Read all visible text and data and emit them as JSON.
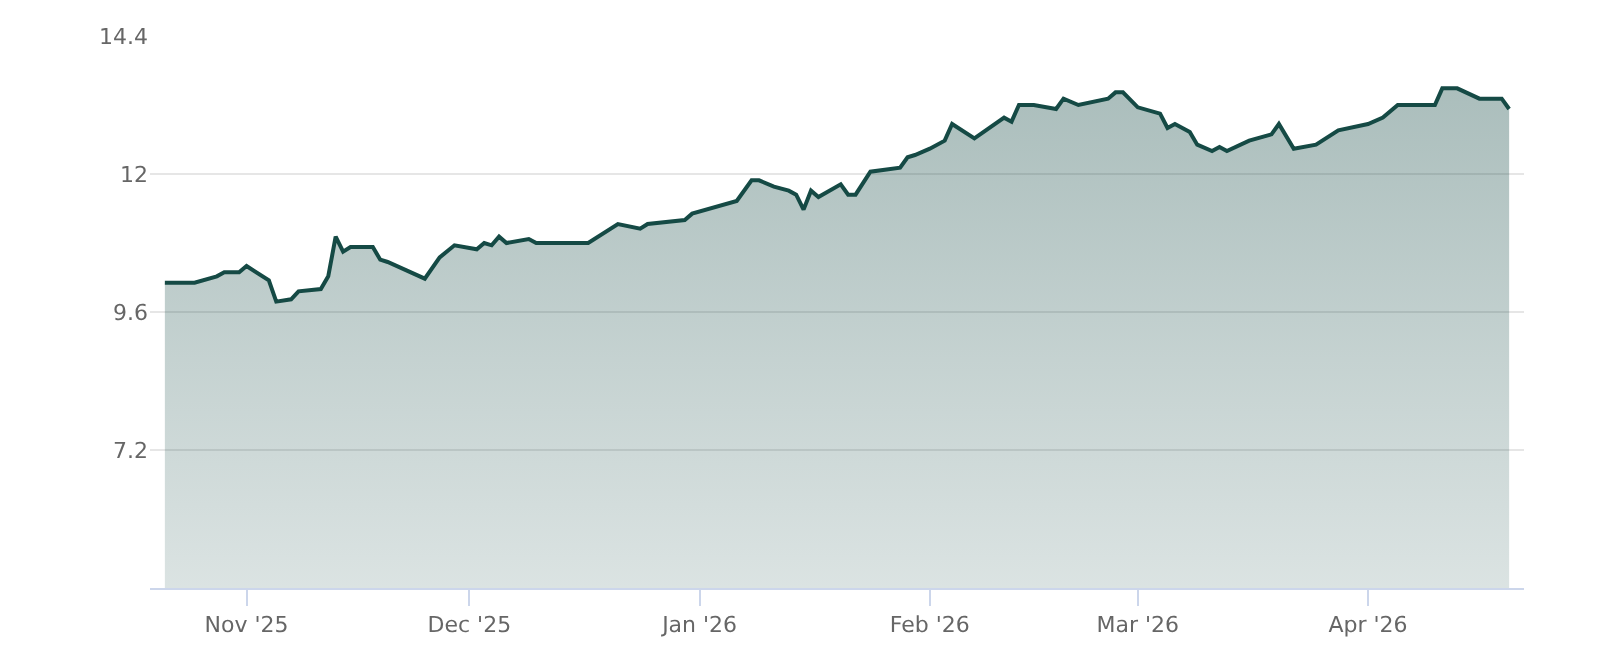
{
  "chart_data": {
    "type": "area",
    "x": [
      "2025-10-21",
      "2025-10-25",
      "2025-10-28",
      "2025-10-29",
      "2025-10-31",
      "2025-11-01",
      "2025-11-04",
      "2025-11-05",
      "2025-11-07",
      "2025-11-08",
      "2025-11-11",
      "2025-11-12",
      "2025-11-13",
      "2025-11-14",
      "2025-11-15",
      "2025-11-18",
      "2025-11-19",
      "2025-11-20",
      "2025-11-25",
      "2025-11-27",
      "2025-11-29",
      "2025-12-02",
      "2025-12-03",
      "2025-12-04",
      "2025-12-05",
      "2025-12-06",
      "2025-12-09",
      "2025-12-10",
      "2025-12-17",
      "2025-12-21",
      "2025-12-24",
      "2025-12-25",
      "2025-12-30",
      "2025-12-31",
      "2026-01-06",
      "2026-01-08",
      "2026-01-09",
      "2026-01-11",
      "2026-01-13",
      "2026-01-14",
      "2026-01-15",
      "2026-01-16",
      "2026-01-17",
      "2026-01-20",
      "2026-01-21",
      "2026-01-22",
      "2026-01-24",
      "2026-01-28",
      "2026-01-29",
      "2026-01-30",
      "2026-02-01",
      "2026-02-03",
      "2026-02-04",
      "2026-02-07",
      "2026-02-11",
      "2026-02-12",
      "2026-02-13",
      "2026-02-15",
      "2026-02-18",
      "2026-02-19",
      "2026-02-21",
      "2026-02-25",
      "2026-02-26",
      "2026-02-27",
      "2026-03-01",
      "2026-03-04",
      "2026-03-05",
      "2026-03-06",
      "2026-03-08",
      "2026-03-09",
      "2026-03-11",
      "2026-03-12",
      "2026-03-13",
      "2026-03-16",
      "2026-03-19",
      "2026-03-20",
      "2026-03-22",
      "2026-03-25",
      "2026-03-28",
      "2026-04-01",
      "2026-04-03",
      "2026-04-05",
      "2026-04-10",
      "2026-04-11",
      "2026-04-13",
      "2026-04-16",
      "2026-04-19",
      "2026-04-20"
    ],
    "series": [
      {
        "color": "#154a45",
        "values": [
          10.11,
          10.11,
          10.22,
          10.29,
          10.29,
          10.4,
          10.15,
          9.78,
          9.82,
          9.96,
          10.0,
          10.22,
          10.91,
          10.65,
          10.73,
          10.73,
          10.51,
          10.47,
          10.18,
          10.55,
          10.76,
          10.69,
          10.8,
          10.76,
          10.91,
          10.8,
          10.87,
          10.8,
          10.8,
          11.13,
          11.05,
          11.13,
          11.2,
          11.31,
          11.53,
          11.89,
          11.89,
          11.78,
          11.71,
          11.64,
          11.38,
          11.71,
          11.6,
          11.82,
          11.64,
          11.64,
          12.04,
          12.11,
          12.29,
          12.33,
          12.44,
          12.58,
          12.87,
          12.62,
          12.98,
          12.91,
          13.2,
          13.2,
          13.13,
          13.31,
          13.2,
          13.31,
          13.42,
          13.42,
          13.16,
          13.05,
          12.8,
          12.87,
          12.73,
          12.51,
          12.4,
          12.47,
          12.4,
          12.58,
          12.69,
          12.87,
          12.44,
          12.51,
          12.76,
          12.87,
          12.98,
          13.2,
          13.2,
          13.49,
          13.49,
          13.31,
          13.31,
          13.13
        ]
      }
    ],
    "xlim": [
      "2025-10-19",
      "2026-04-22"
    ],
    "xticks": [
      {
        "value": "2025-11-01",
        "label": "Nov '25"
      },
      {
        "value": "2025-12-01",
        "label": "Dec '25"
      },
      {
        "value": "2026-01-01",
        "label": "Jan '26"
      },
      {
        "value": "2026-02-01",
        "label": "Feb '26"
      },
      {
        "value": "2026-03-01",
        "label": "Mar '26"
      },
      {
        "value": "2026-04-01",
        "label": "Apr '26"
      }
    ],
    "ylim": [
      4.8,
      14.4
    ],
    "yticks": [
      7.2,
      9.6,
      12,
      14.4
    ],
    "grid": "y",
    "marker": "none",
    "line_style": "solid"
  }
}
